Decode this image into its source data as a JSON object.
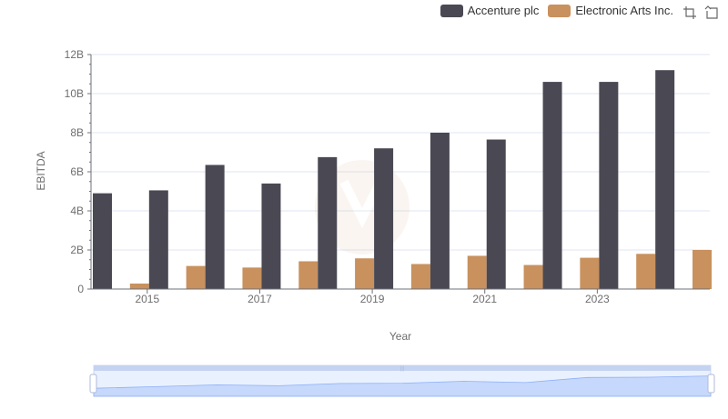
{
  "toolbox": {
    "zoom_icon": "zoom-icon",
    "restore_icon": "restore-icon"
  },
  "chart_data": {
    "type": "bar",
    "xlabel": "Year",
    "ylabel": "EBITDA",
    "x": [
      2014,
      2015,
      2016,
      2017,
      2018,
      2019,
      2020,
      2021,
      2022,
      2023,
      2024
    ],
    "x_tick_labels": [
      "2015",
      "2017",
      "2019",
      "2021",
      "2023"
    ],
    "y_tick_labels": [
      "0",
      "2B",
      "4B",
      "6B",
      "8B",
      "10B",
      "12B"
    ],
    "ylim": [
      0,
      12000000000
    ],
    "grid": true,
    "legend_position": "top-right",
    "series": [
      {
        "name": "Accenture plc",
        "color": "#4a4953",
        "values": [
          4900000000,
          5050000000,
          6350000000,
          5400000000,
          6750000000,
          7200000000,
          8000000000,
          7650000000,
          10600000000,
          10600000000,
          11200000000
        ]
      },
      {
        "name": "Electronic Arts Inc.",
        "color": "#c8915e",
        "values": [
          280000000,
          1180000000,
          1100000000,
          1420000000,
          1570000000,
          1280000000,
          1700000000,
          1230000000,
          1600000000,
          1800000000,
          2000000000
        ]
      }
    ]
  }
}
